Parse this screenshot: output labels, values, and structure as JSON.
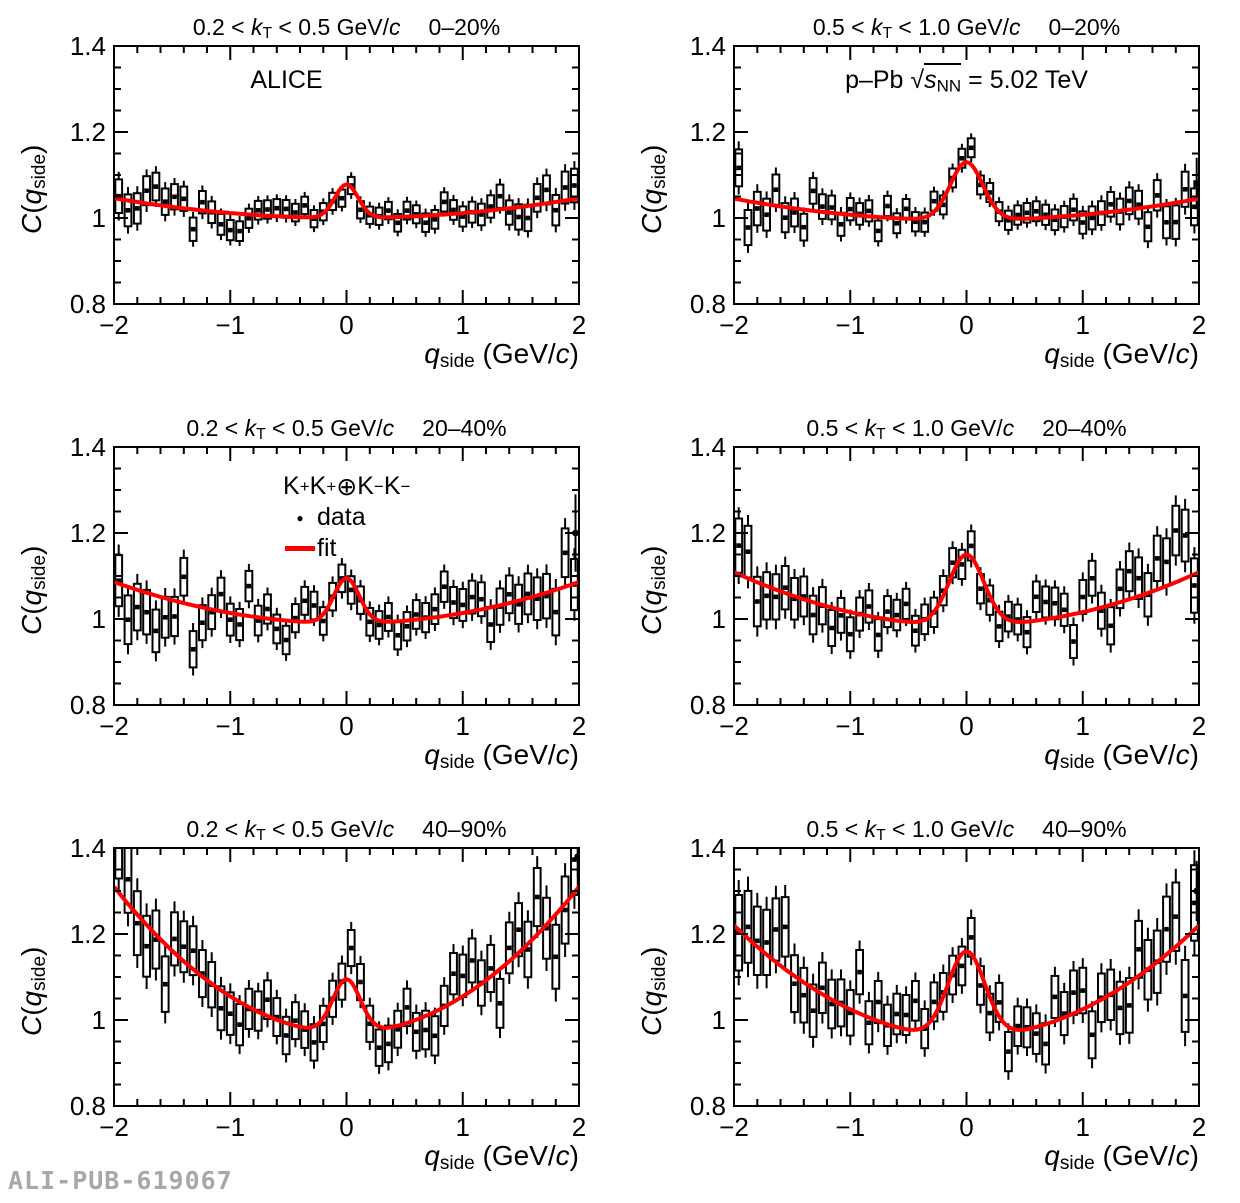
{
  "watermark": "ALI-PUB-619067",
  "colors": {
    "fit_line": "#ff0000",
    "data_marker": "#000000",
    "frame": "#000000",
    "watermark": "#a8a8a8",
    "background": "#ffffff"
  },
  "chart_data": {
    "type": "scatter",
    "grid": {
      "rows": 3,
      "cols": 2
    },
    "series": [
      {
        "name": "data",
        "style": "black square markers with statistical error bars and open systematic error boxes"
      },
      {
        "name": "fit",
        "style": "red solid line"
      }
    ],
    "axes": {
      "xlim": [
        -2,
        2
      ],
      "ylim": [
        0.8,
        1.4
      ],
      "xticks": [
        -2,
        -1,
        0,
        1,
        2
      ],
      "xtick_labels": [
        "−2",
        "−1",
        "0",
        "1",
        "2"
      ],
      "x_minor_step": 0.2,
      "yticks": [
        0.8,
        1.0,
        1.2,
        1.4
      ],
      "ytick_labels": [
        "0.8",
        "1",
        "1.2",
        "1.4"
      ],
      "y_minor_step": 0.05,
      "grid_lines": false,
      "xlabel_parts": {
        "q": "q",
        "sub": "side",
        "mid": " (GeV/",
        "c": "c",
        "close": ")"
      },
      "ylabel_parts": {
        "C": "C",
        "open": "(",
        "q": "q",
        "sub": "side",
        "close": ")"
      }
    },
    "legend": {
      "position": "inside top of middle-left panel",
      "pair_label_parts": [
        [
          "K",
          1
        ],
        [
          "+",
          2
        ],
        [
          "K",
          1
        ],
        [
          "+",
          2
        ],
        [
          "⊕",
          1
        ],
        [
          "K",
          1
        ],
        [
          "−",
          2
        ],
        [
          "K",
          1
        ],
        [
          "−",
          2
        ]
      ],
      "data_label": "data",
      "fit_label": "fit"
    },
    "annotations": {
      "experiment": "ALICE",
      "system_parts": {
        "pre": "p–Pb ",
        "sqrt": "√",
        "s": "s",
        "sub": "NN",
        "post": " = 5.02 TeV"
      }
    },
    "panels": [
      {
        "id": "kt02-05-cent00-20",
        "kt_pre": "0.2 < ",
        "kt_var": "k",
        "kt_varsub": "T",
        "kt_post": " < 0.5 GeV/",
        "kt_c": "c",
        "centrality": "0–20%",
        "annotation": "experiment",
        "fit": {
          "baseline_c0": 1.0,
          "baseline_c2": 0.0115,
          "peak_amp": 0.078,
          "peak_sigma": 0.1
        },
        "fit_summary": {
          "value_at_edges": 1.046,
          "baseline_min": 1.0,
          "peak_value_at_q0": 1.08
        },
        "data_gen": {
          "bin_step": 0.08,
          "noise_sigma0": 0.015,
          "noise_edge_factor": 1.4,
          "box_halfheight0": 0.02,
          "box_edge_factor": 1.0,
          "seed": 101
        },
        "edge_point": null
      },
      {
        "id": "kt05-10-cent00-20",
        "kt_pre": "0.5 < ",
        "kt_var": "k",
        "kt_varsub": "T",
        "kt_post": " < 1.0 GeV/",
        "kt_c": "c",
        "centrality": "0–20%",
        "annotation": "system",
        "fit": {
          "baseline_c0": 0.995,
          "baseline_c2": 0.0125,
          "peak_amp": 0.135,
          "peak_sigma": 0.14
        },
        "fit_summary": {
          "value_at_edges": 1.045,
          "baseline_min": 0.995,
          "peak_value_at_q0": 1.13
        },
        "data_gen": {
          "bin_step": 0.08,
          "noise_sigma0": 0.016,
          "noise_edge_factor": 1.4,
          "box_halfheight0": 0.022,
          "box_edge_factor": 1.0,
          "seed": 202
        },
        "edge_point": {
          "x": 1.98,
          "y": 1.08,
          "err": 0.06
        }
      },
      {
        "id": "kt02-05-cent20-40",
        "kt_pre": "0.2 < ",
        "kt_var": "k",
        "kt_varsub": "T",
        "kt_post": " < 0.5 GeV/",
        "kt_c": "c",
        "centrality": "20–40%",
        "annotation": "legend",
        "fit": {
          "baseline_c0": 0.99,
          "baseline_c2": 0.024,
          "peak_amp": 0.105,
          "peak_sigma": 0.11
        },
        "fit_summary": {
          "value_at_edges": 1.086,
          "baseline_min": 0.99,
          "peak_value_at_q0": 1.1
        },
        "data_gen": {
          "bin_step": 0.08,
          "noise_sigma0": 0.026,
          "noise_edge_factor": 1.2,
          "box_halfheight0": 0.032,
          "box_edge_factor": 0.9,
          "seed": 303
        },
        "edge_point": {
          "x": 1.97,
          "y": 1.2,
          "err": 0.09
        }
      },
      {
        "id": "kt05-10-cent20-40",
        "kt_pre": "0.5 < ",
        "kt_var": "k",
        "kt_varsub": "T",
        "kt_post": " < 1.0 GeV/",
        "kt_c": "c",
        "centrality": "20–40%",
        "annotation": null,
        "fit": {
          "baseline_c0": 0.985,
          "baseline_c2": 0.031,
          "peak_amp": 0.165,
          "peak_sigma": 0.15
        },
        "fit_summary": {
          "value_at_edges": 1.109,
          "baseline_min": 0.985,
          "peak_value_at_q0": 1.15
        },
        "data_gen": {
          "bin_step": 0.08,
          "noise_sigma0": 0.027,
          "noise_edge_factor": 1.2,
          "box_halfheight0": 0.034,
          "box_edge_factor": 0.9,
          "seed": 404
        },
        "edge_point": null
      },
      {
        "id": "kt02-05-cent40-90",
        "kt_pre": "0.2 < ",
        "kt_var": "k",
        "kt_varsub": "T",
        "kt_post": " < 0.5 GeV/",
        "kt_c": "c",
        "centrality": "40–90%",
        "annotation": null,
        "fit": {
          "baseline_c0": 0.97,
          "baseline_c2": 0.085,
          "peak_amp": 0.125,
          "peak_sigma": 0.12
        },
        "fit_summary": {
          "value_at_edges": 1.31,
          "baseline_min": 0.97,
          "peak_value_at_q0": 1.1
        },
        "data_gen": {
          "bin_step": 0.08,
          "noise_sigma0": 0.032,
          "noise_edge_factor": 1.1,
          "box_halfheight0": 0.042,
          "box_edge_factor": 1.0,
          "seed": 505
        },
        "edge_point": {
          "x": 1.99,
          "y": 1.38,
          "err": 0.05
        }
      },
      {
        "id": "kt05-10-cent40-90",
        "kt_pre": "0.5 < ",
        "kt_var": "k",
        "kt_varsub": "T",
        "kt_post": " < 1.0 GeV/",
        "kt_c": "c",
        "centrality": "40–90%",
        "annotation": null,
        "fit": {
          "baseline_c0": 0.96,
          "baseline_c2": 0.065,
          "peak_amp": 0.2,
          "peak_sigma": 0.16
        },
        "fit_summary": {
          "value_at_edges": 1.22,
          "baseline_min": 0.96,
          "peak_value_at_q0": 1.16
        },
        "data_gen": {
          "bin_step": 0.08,
          "noise_sigma0": 0.033,
          "noise_edge_factor": 1.1,
          "box_halfheight0": 0.045,
          "box_edge_factor": 1.0,
          "seed": 606
        },
        "edge_point": {
          "x": 1.98,
          "y": 1.3,
          "err": 0.07
        }
      }
    ]
  }
}
